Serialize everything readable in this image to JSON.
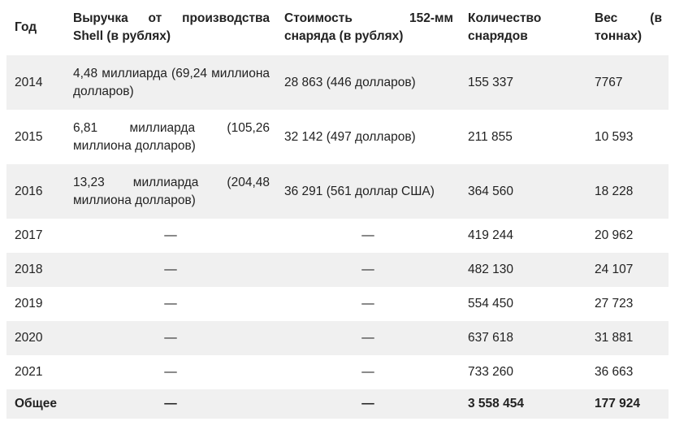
{
  "table": {
    "headers": {
      "year": "Год",
      "revenue": "Выручка от производства Shell (в рублях)",
      "cost": "Стоимость 152-мм снаряда (в рублях)",
      "quantity": "Количество снарядов",
      "weight": "Вес (в тоннах)"
    },
    "rows": [
      {
        "year": "2014",
        "revenue": "4,48 миллиарда (69,24 миллиона долларов)",
        "cost": "28 863 (446 долларов)",
        "quantity": "155 337",
        "weight": "7767"
      },
      {
        "year": "2015",
        "revenue": "6,81 миллиарда (105,26 миллиона долларов)",
        "cost": "32 142 (497 долларов)",
        "quantity": "211 855",
        "weight": "10 593"
      },
      {
        "year": "2016",
        "revenue": "13,23 миллиарда (204,48 миллиона долларов)",
        "cost": "36 291 (561 доллар США)",
        "quantity": "364 560",
        "weight": "18 228"
      },
      {
        "year": "2017",
        "revenue": "—",
        "cost": "—",
        "quantity": "419 244",
        "weight": "20 962"
      },
      {
        "year": "2018",
        "revenue": "—",
        "cost": "—",
        "quantity": "482 130",
        "weight": "24 107"
      },
      {
        "year": "2019",
        "revenue": "—",
        "cost": "—",
        "quantity": "554 450",
        "weight": "27 723"
      },
      {
        "year": "2020",
        "revenue": "—",
        "cost": "—",
        "quantity": "637 618",
        "weight": "31 881"
      },
      {
        "year": "2021",
        "revenue": "—",
        "cost": "—",
        "quantity": "733 260",
        "weight": "36 663"
      }
    ],
    "total": {
      "year": "Общее",
      "revenue": "—",
      "cost": "—",
      "quantity": "3 558 454",
      "weight": "177 924"
    }
  }
}
